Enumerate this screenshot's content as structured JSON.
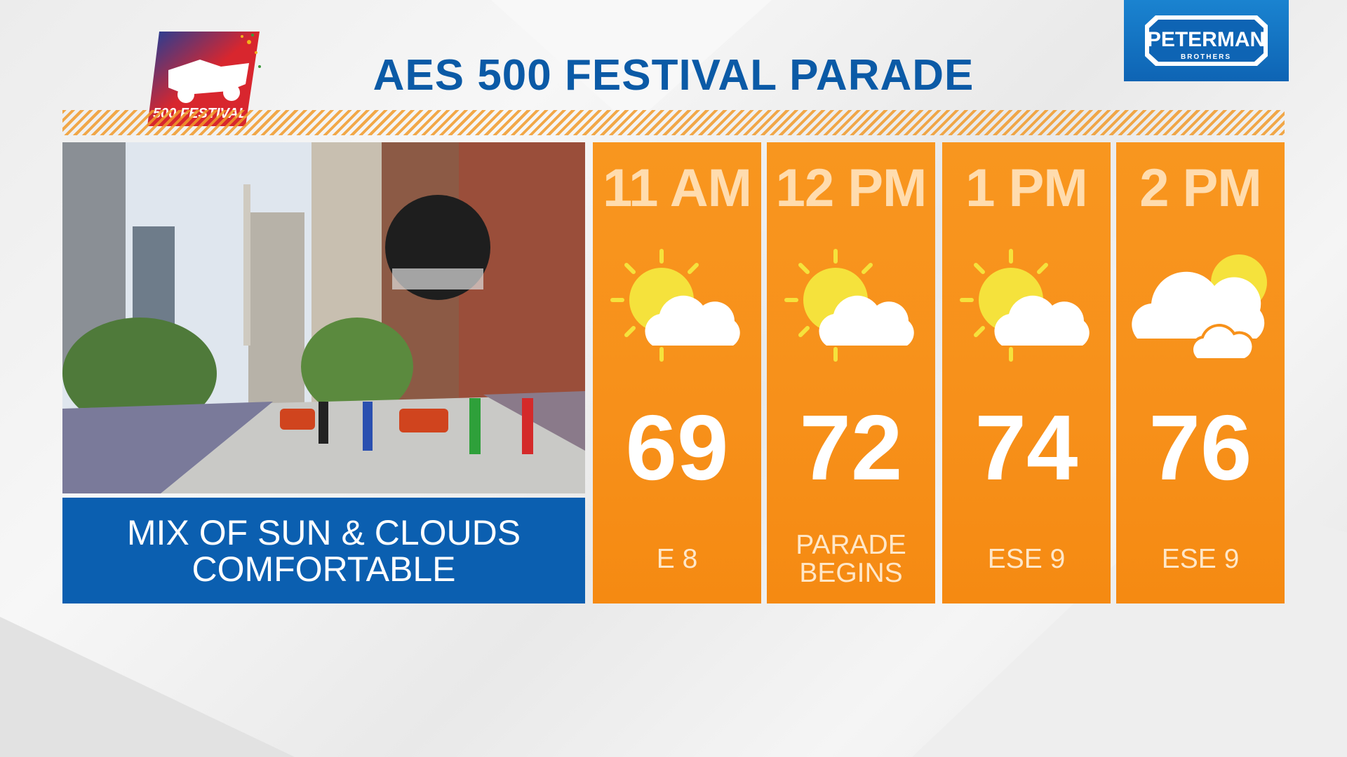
{
  "header": {
    "title": "AES 500 FESTIVAL PARADE"
  },
  "logo": {
    "text": "500 FESTIVAL"
  },
  "sponsor": {
    "name": "PETERMAN",
    "subtitle": "BROTHERS"
  },
  "summary": {
    "lines": [
      "MIX OF SUN & CLOUDS",
      "COMFORTABLE"
    ]
  },
  "forecast": [
    {
      "time": "11 AM",
      "temperature": 69,
      "note": "E 8"
    },
    {
      "time": "12 PM",
      "temperature": 72,
      "note": "PARADE BEGINS"
    },
    {
      "time": "1 PM",
      "temperature": 74,
      "note": "ESE 9"
    },
    {
      "time": "2 PM",
      "temperature": 76,
      "note": "ESE 9"
    }
  ]
}
